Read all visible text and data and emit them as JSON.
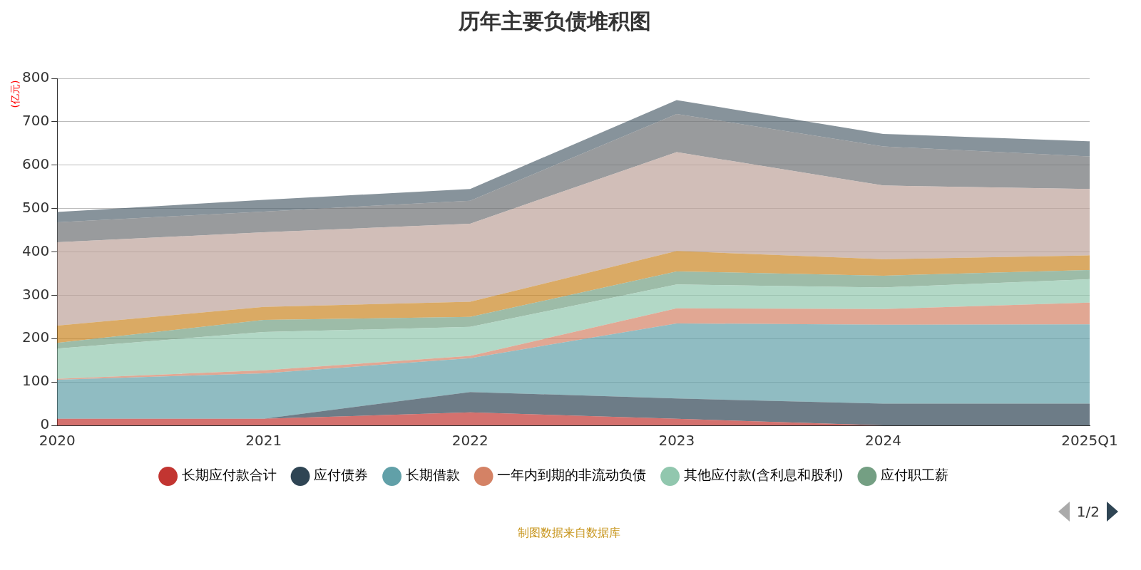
{
  "chart_data": {
    "type": "area",
    "title": "历年主要负债堆积图",
    "ylabel": "(亿元)",
    "categories": [
      "2020",
      "2021",
      "2022",
      "2023",
      "2024",
      "2025Q1"
    ],
    "stacked": true,
    "ylim": [
      0,
      800
    ],
    "yticks": [
      0,
      100,
      200,
      300,
      400,
      500,
      600,
      700,
      800
    ],
    "grid": "y",
    "legend": "bottom",
    "annotations": [
      "1/2",
      "制图数据来自数据库"
    ],
    "series": [
      {
        "name": "长期应付款合计",
        "color": "#c23531",
        "values": [
          15,
          15,
          30,
          15,
          0,
          0
        ]
      },
      {
        "name": "应付债券",
        "color": "#2f4554",
        "values": [
          0,
          0,
          47,
          47,
          50,
          50
        ]
      },
      {
        "name": "长期借款",
        "color": "#61a0a8",
        "values": [
          90,
          105,
          78,
          173,
          182,
          183
        ]
      },
      {
        "name": "一年内到期的非流动负债",
        "color": "#d48265",
        "values": [
          2,
          7,
          5,
          35,
          36,
          50
        ]
      },
      {
        "name": "其他应付款(含利息和股利)",
        "color": "#91c7ae",
        "values": [
          70,
          88,
          67,
          55,
          50,
          54
        ]
      },
      {
        "name": "应付职工薪",
        "color": "#749f83",
        "values": [
          13,
          28,
          23,
          30,
          27,
          21
        ]
      },
      {
        "color": "#ca8622",
        "values": [
          40,
          30,
          35,
          47,
          38,
          34
        ]
      },
      {
        "color": "#bda29a",
        "values": [
          192,
          172,
          180,
          228,
          170,
          153
        ]
      },
      {
        "color": "#6e7074",
        "values": [
          46,
          48,
          53,
          88,
          90,
          75
        ]
      },
      {
        "color": "#546570",
        "values": [
          24,
          27,
          27,
          32,
          29,
          35
        ]
      }
    ]
  }
}
